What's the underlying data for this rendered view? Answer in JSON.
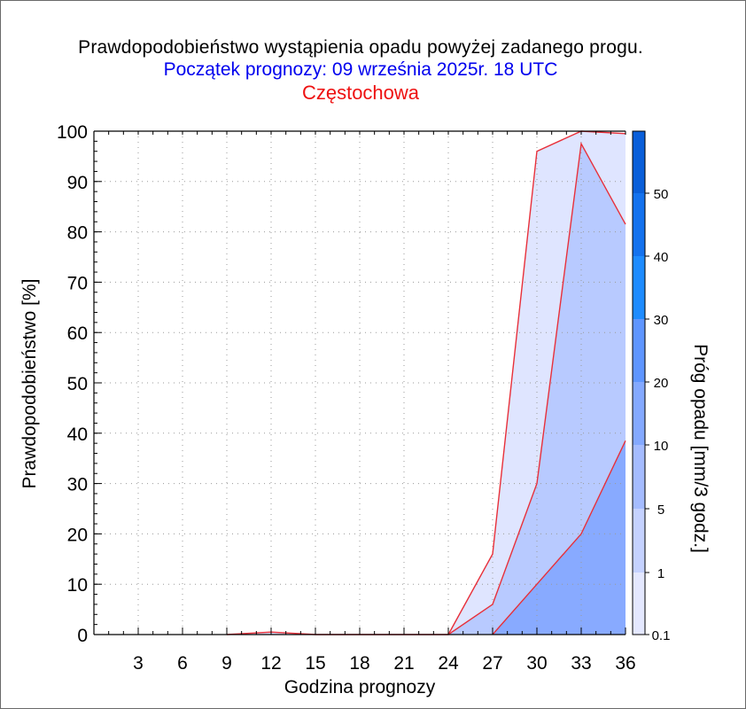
{
  "header": {
    "title": "Prawdopodobieństwo wystąpienia opadu powyżej zadanego progu.",
    "subtitle": "Początek prognozy: 09 września 2025r. 18 UTC",
    "station": "Częstochowa"
  },
  "chart_data": {
    "type": "area",
    "title": "Prawdopodobieństwo wystąpienia opadu powyżej zadanego progu.",
    "subtitle": "Początek prognozy: 09 września 2025r. 18 UTC",
    "location": "Częstochowa",
    "xlabel": "Godzina prognozy",
    "ylabel": "Prawdopodobieństwo [%]",
    "colorbar_label": "Próg opadu [mm/3 godz.]",
    "xlim": [
      0,
      36
    ],
    "ylim": [
      0,
      100
    ],
    "x_ticks": [
      3,
      6,
      9,
      12,
      15,
      18,
      21,
      24,
      27,
      30,
      33,
      36
    ],
    "y_ticks": [
      0,
      10,
      20,
      30,
      40,
      50,
      60,
      70,
      80,
      90,
      100
    ],
    "grid": "dotted",
    "x": [
      0,
      3,
      6,
      9,
      12,
      15,
      18,
      21,
      24,
      27,
      30,
      33,
      36
    ],
    "series": [
      {
        "name": "0.1",
        "color": "#dfe5ff",
        "values": [
          0,
          0,
          0,
          0,
          0.5,
          0,
          0,
          0,
          0,
          16,
          96,
          100,
          99.5
        ]
      },
      {
        "name": "1",
        "color": "#b8caff",
        "values": [
          0,
          0,
          0,
          0,
          0,
          0,
          0,
          0,
          0,
          6,
          30,
          97.5,
          81.5
        ]
      },
      {
        "name": "5",
        "color": "#88aaff",
        "values": [
          0,
          0,
          0,
          0,
          0,
          0,
          0,
          0,
          0,
          0,
          10,
          20,
          38.5
        ]
      }
    ],
    "colorbar": {
      "labels": [
        "0.1",
        "1",
        "5",
        "10",
        "20",
        "30",
        "40",
        "50"
      ],
      "colors": [
        "#e4e8ff",
        "#c5d2ff",
        "#a5bcff",
        "#84a9ff",
        "#5f96ff",
        "#1e8cff",
        "#1472ee",
        "#0a5fda",
        "#0044b8"
      ]
    }
  }
}
